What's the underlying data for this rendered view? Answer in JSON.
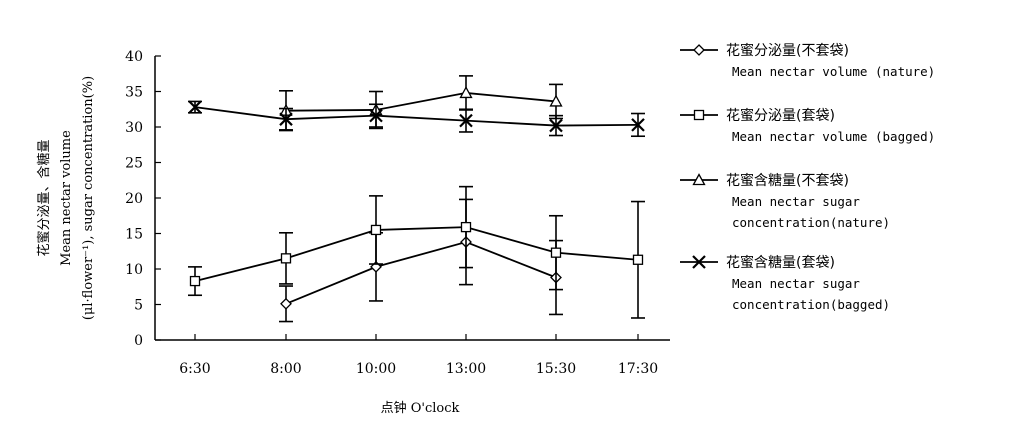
{
  "chart_data": {
    "type": "line",
    "title": "",
    "xlabel": "点钟 O'clock",
    "ylabel_lines": [
      "花蜜分泌量、含糖量",
      "Mean nectar volume",
      "(μl·flower⁻¹), sugar concentration(%)"
    ],
    "ylim": [
      0,
      40
    ],
    "yticks": [
      0,
      5,
      10,
      15,
      20,
      25,
      30,
      35,
      40
    ],
    "categories": [
      "6:30",
      "8:00",
      "10:00",
      "13:00",
      "15:30",
      "17:30"
    ],
    "grid": false,
    "legend_position": "right",
    "series": [
      {
        "name_cn": "花蜜分泌量(不套袋)",
        "name_en": [
          "Mean nectar volume (nature)"
        ],
        "marker": "diamond",
        "values": [
          null,
          5.1,
          10.3,
          13.8,
          8.8,
          null
        ],
        "errors": [
          null,
          2.5,
          4.8,
          6.0,
          5.2,
          null
        ]
      },
      {
        "name_cn": "花蜜分泌量(套袋)",
        "name_en": [
          "Mean nectar volume (bagged)"
        ],
        "marker": "square",
        "values": [
          8.3,
          11.5,
          15.5,
          15.9,
          12.3,
          11.3
        ],
        "errors": [
          2.0,
          3.6,
          4.8,
          5.7,
          5.2,
          8.2
        ]
      },
      {
        "name_cn": "花蜜含糖量(不套袋)",
        "name_en": [
          "Mean nectar sugar",
          "concentration(nature)"
        ],
        "marker": "triangle",
        "values": [
          null,
          32.3,
          32.4,
          34.8,
          33.6,
          null
        ],
        "errors": [
          null,
          2.8,
          2.6,
          2.4,
          2.4,
          null
        ]
      },
      {
        "name_cn": "花蜜含糖量(套袋)",
        "name_en": [
          "Mean nectar sugar",
          "concentration(bagged)"
        ],
        "marker": "x",
        "values": [
          32.8,
          31.1,
          31.6,
          30.9,
          30.2,
          30.3
        ],
        "errors": [
          0.8,
          1.5,
          1.6,
          1.6,
          1.4,
          1.6
        ]
      }
    ]
  }
}
